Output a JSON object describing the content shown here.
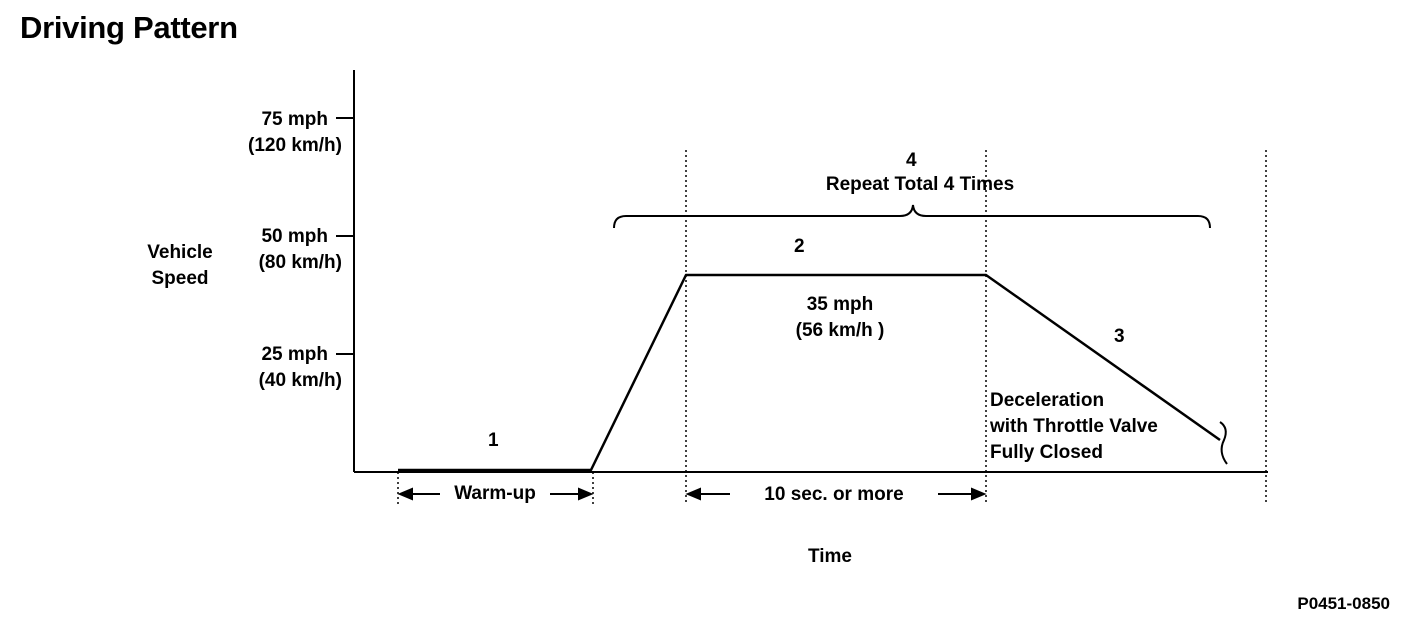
{
  "title": "Driving Pattern",
  "y_axis": {
    "label_line1": "Vehicle",
    "label_line2": "Speed",
    "ticks": [
      {
        "mph": "75 mph",
        "kmh": "(120 km/h)"
      },
      {
        "mph": "50 mph",
        "kmh": "(80 km/h)"
      },
      {
        "mph": "25 mph",
        "kmh": "(40 km/h)"
      }
    ]
  },
  "x_axis": {
    "label": "Time"
  },
  "steps": {
    "step1": "1",
    "step2": "2",
    "step3": "3",
    "step4": "4",
    "repeat": "Repeat Total 4 Times",
    "cruise_mph": "35 mph",
    "cruise_kmh": "(56 km/h )",
    "decel_line1": "Deceleration",
    "decel_line2": "with Throttle Valve",
    "decel_line3": "Fully Closed"
  },
  "intervals": {
    "warmup": "Warm-up",
    "hold": "10 sec. or more"
  },
  "figure_code": "P0451-0850"
}
